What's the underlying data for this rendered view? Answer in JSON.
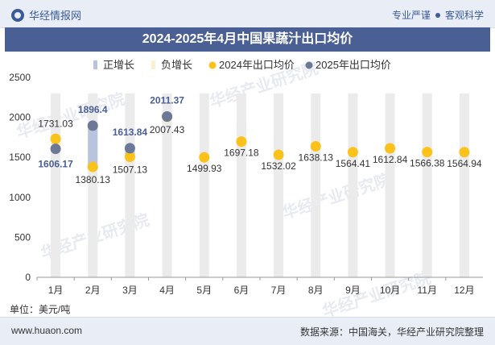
{
  "header": {
    "brand": "华经情报网",
    "tagline_left": "专业严谨",
    "tagline_right": "客观科学"
  },
  "title": "2024-2025年4月中国果蔬汁出口均价",
  "unit_label": "单位：美元/吨",
  "footer": {
    "site": "www.huaon.com",
    "source": "数据来源：中国海关，华经产业研究院整理"
  },
  "watermark": "华经产业研究院",
  "colors": {
    "pos_bar": "#b8c4de",
    "neg_bar": "#fdf0cc",
    "s2024": "#fbc21b",
    "s2025": "#6b7896",
    "bg_bar": "#ebebeb"
  },
  "chart_data": {
    "type": "line",
    "categories": [
      "1月",
      "2月",
      "3月",
      "4月",
      "5月",
      "6月",
      "7月",
      "8月",
      "9月",
      "10月",
      "11月",
      "12月"
    ],
    "legend": [
      "正增长",
      "负增长",
      "2024年出口均价",
      "2025年出口均价"
    ],
    "series": [
      {
        "name": "2024年出口均价",
        "values": [
          1731.03,
          1380.13,
          1507.13,
          2007.43,
          1499.93,
          1697.18,
          1532.02,
          1638.13,
          1564.41,
          1612.84,
          1566.38,
          1564.94
        ],
        "labels": [
          "1731.03",
          "1380.13",
          "1507.13",
          "2007.43",
          "1499.93",
          "1697.18",
          "1532.02",
          "1638.13",
          "1564.41",
          "1612.84",
          "1566.38",
          "1564.94"
        ]
      },
      {
        "name": "2025年出口均价",
        "values": [
          1606.17,
          1896.4,
          1613.84,
          2011.37,
          null,
          null,
          null,
          null,
          null,
          null,
          null,
          null
        ],
        "labels": [
          "1606.17",
          "1896.4",
          "1613.84",
          "2011.37",
          "",
          "",
          "",
          "",
          "",
          "",
          "",
          ""
        ]
      }
    ],
    "ylim": [
      0,
      2500
    ],
    "yticks": [
      "0",
      "500",
      "1000",
      "1500",
      "2000",
      "2500"
    ]
  }
}
